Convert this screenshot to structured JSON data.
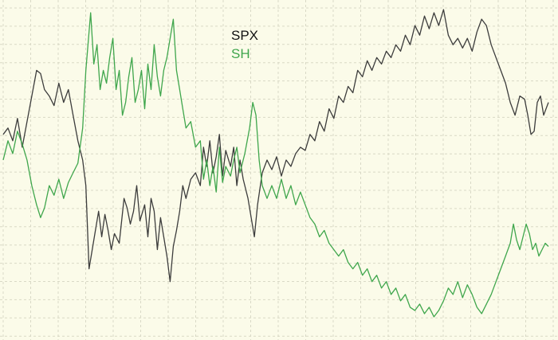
{
  "chart_data": {
    "type": "line",
    "title": "",
    "xlabel": "",
    "ylabel": "",
    "grid": true,
    "legend_position": "top-center",
    "ylim": [
      0,
      100
    ],
    "background_color": "#fbfbe9",
    "grid_color": "#d9d9c6",
    "series": [
      {
        "name": "SPX",
        "color": "#3c3c3c",
        "points": [
          [
            0,
            60
          ],
          [
            6,
            62
          ],
          [
            12,
            58
          ],
          [
            18,
            65
          ],
          [
            24,
            56
          ],
          [
            30,
            64
          ],
          [
            36,
            72
          ],
          [
            42,
            80
          ],
          [
            47,
            79
          ],
          [
            52,
            74
          ],
          [
            58,
            72
          ],
          [
            64,
            69
          ],
          [
            70,
            76
          ],
          [
            76,
            70
          ],
          [
            82,
            74
          ],
          [
            88,
            66
          ],
          [
            94,
            58
          ],
          [
            100,
            52
          ],
          [
            104,
            44
          ],
          [
            108,
            18
          ],
          [
            112,
            24
          ],
          [
            116,
            30
          ],
          [
            120,
            36
          ],
          [
            124,
            28
          ],
          [
            128,
            35
          ],
          [
            132,
            30
          ],
          [
            136,
            24
          ],
          [
            140,
            29
          ],
          [
            146,
            26
          ],
          [
            152,
            40
          ],
          [
            156,
            37
          ],
          [
            160,
            32
          ],
          [
            164,
            36
          ],
          [
            168,
            44
          ],
          [
            172,
            33
          ],
          [
            178,
            38
          ],
          [
            182,
            28
          ],
          [
            186,
            40
          ],
          [
            190,
            36
          ],
          [
            194,
            24
          ],
          [
            198,
            34
          ],
          [
            202,
            28
          ],
          [
            206,
            22
          ],
          [
            210,
            14
          ],
          [
            214,
            25
          ],
          [
            218,
            30
          ],
          [
            222,
            36
          ],
          [
            226,
            44
          ],
          [
            230,
            40
          ],
          [
            236,
            46
          ],
          [
            242,
            48
          ],
          [
            248,
            44
          ],
          [
            252,
            56
          ],
          [
            256,
            50
          ],
          [
            260,
            58
          ],
          [
            264,
            48
          ],
          [
            268,
            53
          ],
          [
            272,
            60
          ],
          [
            276,
            47
          ],
          [
            280,
            55
          ],
          [
            286,
            50
          ],
          [
            290,
            56
          ],
          [
            294,
            44
          ],
          [
            298,
            52
          ],
          [
            302,
            46
          ],
          [
            308,
            40
          ],
          [
            312,
            34
          ],
          [
            316,
            28
          ],
          [
            320,
            38
          ],
          [
            326,
            48
          ],
          [
            332,
            52
          ],
          [
            338,
            49
          ],
          [
            344,
            53
          ],
          [
            350,
            47
          ],
          [
            356,
            52
          ],
          [
            362,
            50
          ],
          [
            368,
            54
          ],
          [
            374,
            56
          ],
          [
            380,
            55
          ],
          [
            386,
            60
          ],
          [
            392,
            58
          ],
          [
            398,
            64
          ],
          [
            404,
            61
          ],
          [
            410,
            68
          ],
          [
            416,
            65
          ],
          [
            422,
            72
          ],
          [
            428,
            70
          ],
          [
            434,
            75
          ],
          [
            440,
            73
          ],
          [
            446,
            80
          ],
          [
            452,
            78
          ],
          [
            458,
            83
          ],
          [
            464,
            80
          ],
          [
            470,
            84
          ],
          [
            476,
            82
          ],
          [
            482,
            86
          ],
          [
            488,
            84
          ],
          [
            494,
            88
          ],
          [
            500,
            86
          ],
          [
            506,
            91
          ],
          [
            512,
            88
          ],
          [
            518,
            94
          ],
          [
            524,
            91
          ],
          [
            530,
            97
          ],
          [
            536,
            93
          ],
          [
            542,
            98
          ],
          [
            548,
            94
          ],
          [
            554,
            99
          ],
          [
            560,
            91
          ],
          [
            566,
            88
          ],
          [
            572,
            90
          ],
          [
            578,
            87
          ],
          [
            584,
            90
          ],
          [
            590,
            86
          ],
          [
            596,
            92
          ],
          [
            602,
            96
          ],
          [
            608,
            94
          ],
          [
            614,
            88
          ],
          [
            620,
            84
          ],
          [
            626,
            80
          ],
          [
            632,
            76
          ],
          [
            638,
            70
          ],
          [
            644,
            66
          ],
          [
            650,
            72
          ],
          [
            656,
            71
          ],
          [
            660,
            66
          ],
          [
            664,
            60
          ],
          [
            668,
            61
          ],
          [
            672,
            70
          ],
          [
            676,
            72
          ],
          [
            680,
            66
          ],
          [
            686,
            70
          ]
        ]
      },
      {
        "name": "SH",
        "color": "#3fa64c",
        "points": [
          [
            0,
            52
          ],
          [
            6,
            58
          ],
          [
            12,
            54
          ],
          [
            18,
            61
          ],
          [
            24,
            57
          ],
          [
            30,
            52
          ],
          [
            36,
            44
          ],
          [
            42,
            38
          ],
          [
            47,
            34
          ],
          [
            52,
            37
          ],
          [
            58,
            44
          ],
          [
            64,
            41
          ],
          [
            70,
            46
          ],
          [
            76,
            40
          ],
          [
            82,
            45
          ],
          [
            88,
            48
          ],
          [
            94,
            51
          ],
          [
            100,
            62
          ],
          [
            104,
            80
          ],
          [
            110,
            98
          ],
          [
            114,
            82
          ],
          [
            118,
            88
          ],
          [
            122,
            74
          ],
          [
            126,
            80
          ],
          [
            130,
            76
          ],
          [
            134,
            84
          ],
          [
            138,
            90
          ],
          [
            142,
            74
          ],
          [
            146,
            80
          ],
          [
            150,
            66
          ],
          [
            154,
            70
          ],
          [
            158,
            78
          ],
          [
            162,
            84
          ],
          [
            166,
            70
          ],
          [
            170,
            74
          ],
          [
            174,
            80
          ],
          [
            178,
            68
          ],
          [
            182,
            82
          ],
          [
            186,
            74
          ],
          [
            190,
            88
          ],
          [
            194,
            78
          ],
          [
            198,
            72
          ],
          [
            202,
            80
          ],
          [
            206,
            84
          ],
          [
            210,
            90
          ],
          [
            214,
            96
          ],
          [
            218,
            80
          ],
          [
            222,
            74
          ],
          [
            226,
            68
          ],
          [
            230,
            62
          ],
          [
            236,
            64
          ],
          [
            242,
            56
          ],
          [
            248,
            58
          ],
          [
            252,
            46
          ],
          [
            256,
            52
          ],
          [
            260,
            44
          ],
          [
            264,
            50
          ],
          [
            268,
            42
          ],
          [
            272,
            56
          ],
          [
            276,
            45
          ],
          [
            280,
            50
          ],
          [
            286,
            47
          ],
          [
            290,
            52
          ],
          [
            294,
            56
          ],
          [
            298,
            48
          ],
          [
            304,
            54
          ],
          [
            310,
            62
          ],
          [
            314,
            70
          ],
          [
            318,
            66
          ],
          [
            322,
            52
          ],
          [
            326,
            44
          ],
          [
            332,
            40
          ],
          [
            338,
            44
          ],
          [
            344,
            40
          ],
          [
            350,
            46
          ],
          [
            356,
            40
          ],
          [
            362,
            44
          ],
          [
            368,
            38
          ],
          [
            374,
            42
          ],
          [
            380,
            38
          ],
          [
            386,
            34
          ],
          [
            392,
            32
          ],
          [
            398,
            28
          ],
          [
            404,
            30
          ],
          [
            410,
            26
          ],
          [
            416,
            24
          ],
          [
            422,
            22
          ],
          [
            428,
            24
          ],
          [
            434,
            20
          ],
          [
            440,
            18
          ],
          [
            446,
            20
          ],
          [
            452,
            16
          ],
          [
            458,
            18
          ],
          [
            464,
            14
          ],
          [
            470,
            16
          ],
          [
            476,
            12
          ],
          [
            482,
            14
          ],
          [
            488,
            10
          ],
          [
            494,
            12
          ],
          [
            500,
            8
          ],
          [
            506,
            10
          ],
          [
            512,
            6
          ],
          [
            518,
            5
          ],
          [
            524,
            7
          ],
          [
            530,
            4
          ],
          [
            536,
            6
          ],
          [
            542,
            3
          ],
          [
            548,
            5
          ],
          [
            554,
            8
          ],
          [
            560,
            12
          ],
          [
            566,
            10
          ],
          [
            572,
            14
          ],
          [
            578,
            9
          ],
          [
            584,
            13
          ],
          [
            590,
            10
          ],
          [
            596,
            6
          ],
          [
            602,
            4
          ],
          [
            608,
            7
          ],
          [
            614,
            10
          ],
          [
            620,
            14
          ],
          [
            626,
            18
          ],
          [
            632,
            22
          ],
          [
            638,
            26
          ],
          [
            642,
            32
          ],
          [
            646,
            27
          ],
          [
            650,
            24
          ],
          [
            654,
            28
          ],
          [
            658,
            32
          ],
          [
            662,
            29
          ],
          [
            666,
            24
          ],
          [
            670,
            26
          ],
          [
            674,
            22
          ],
          [
            678,
            24
          ],
          [
            682,
            26
          ],
          [
            686,
            25
          ]
        ]
      }
    ]
  }
}
